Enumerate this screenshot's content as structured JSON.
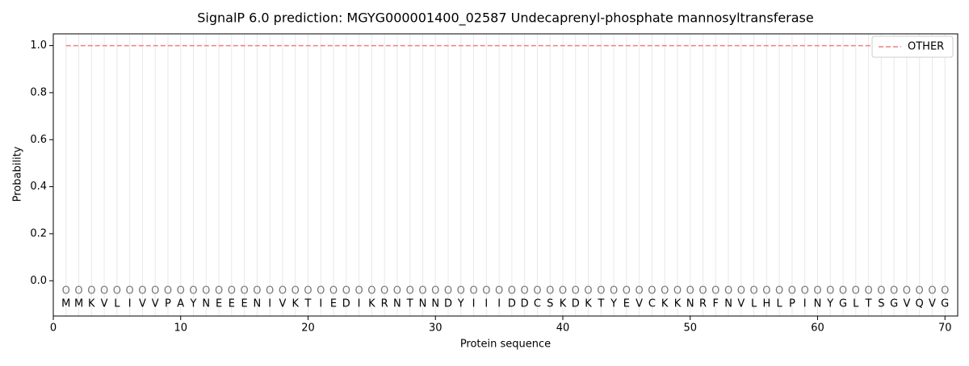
{
  "chart_data": {
    "type": "line",
    "title": "SignalP 6.0 prediction: MGYG000001400_02587 Undecaprenyl-phosphate mannosyltransferase",
    "x_label": "Protein sequence",
    "y_label": "Probability",
    "x": [
      1,
      2,
      3,
      4,
      5,
      6,
      7,
      8,
      9,
      10,
      11,
      12,
      13,
      14,
      15,
      16,
      17,
      18,
      19,
      20,
      21,
      22,
      23,
      24,
      25,
      26,
      27,
      28,
      29,
      30,
      31,
      32,
      33,
      34,
      35,
      36,
      37,
      38,
      39,
      40,
      41,
      42,
      43,
      44,
      45,
      46,
      47,
      48,
      49,
      50,
      51,
      52,
      53,
      54,
      55,
      56,
      57,
      58,
      59,
      60,
      61,
      62,
      63,
      64,
      65,
      66,
      67,
      68,
      69,
      70
    ],
    "sequence": [
      "M",
      "M",
      "K",
      "V",
      "L",
      "I",
      "V",
      "V",
      "P",
      "A",
      "Y",
      "N",
      "E",
      "E",
      "E",
      "N",
      "I",
      "V",
      "K",
      "T",
      "I",
      "E",
      "D",
      "I",
      "K",
      "R",
      "N",
      "T",
      "N",
      "N",
      "D",
      "Y",
      "I",
      "I",
      "I",
      "D",
      "D",
      "C",
      "S",
      "K",
      "D",
      "K",
      "T",
      "Y",
      "E",
      "V",
      "C",
      "K",
      "K",
      "N",
      "R",
      "F",
      "N",
      "V",
      "L",
      "H",
      "L",
      "P",
      "I",
      "N",
      "Y",
      "G",
      "L",
      "T",
      "S",
      "G",
      "V",
      "Q",
      "V",
      "G"
    ],
    "predicted_labels": [
      "O",
      "O",
      "O",
      "O",
      "O",
      "O",
      "O",
      "O",
      "O",
      "O",
      "O",
      "O",
      "O",
      "O",
      "O",
      "O",
      "O",
      "O",
      "O",
      "O",
      "O",
      "O",
      "O",
      "O",
      "O",
      "O",
      "O",
      "O",
      "O",
      "O",
      "O",
      "O",
      "O",
      "O",
      "O",
      "O",
      "O",
      "O",
      "O",
      "O",
      "O",
      "O",
      "O",
      "O",
      "O",
      "O",
      "O",
      "O",
      "O",
      "O",
      "O",
      "O",
      "O",
      "O",
      "O",
      "O",
      "O",
      "O",
      "O",
      "O",
      "O",
      "O",
      "O",
      "O",
      "O",
      "O",
      "O",
      "O",
      "O",
      "O"
    ],
    "series": [
      {
        "name": "OTHER",
        "color": "#f08080",
        "dashed": true,
        "values": [
          1,
          1,
          1,
          1,
          1,
          1,
          1,
          1,
          1,
          1,
          1,
          1,
          1,
          1,
          1,
          1,
          1,
          1,
          1,
          1,
          1,
          1,
          1,
          1,
          1,
          1,
          1,
          1,
          1,
          1,
          1,
          1,
          1,
          1,
          1,
          1,
          1,
          1,
          1,
          1,
          1,
          1,
          1,
          1,
          1,
          1,
          1,
          1,
          1,
          1,
          1,
          1,
          1,
          1,
          1,
          1,
          1,
          1,
          1,
          1,
          1,
          1,
          1,
          1,
          1,
          1,
          1,
          1,
          1,
          1
        ]
      }
    ],
    "xlim": [
      0,
      71
    ],
    "ylim": [
      -0.15,
      1.05
    ],
    "xticks": [
      0,
      10,
      20,
      30,
      40,
      50,
      60,
      70
    ],
    "yticks": [
      {
        "value": 0,
        "label": "0.0"
      },
      {
        "value": 0.2,
        "label": "0.2"
      },
      {
        "value": 0.4,
        "label": "0.4"
      },
      {
        "value": 0.6,
        "label": "0.6"
      },
      {
        "value": 0.8,
        "label": "0.8"
      },
      {
        "value": 1,
        "label": "1.0"
      }
    ],
    "legend": "upper right"
  }
}
